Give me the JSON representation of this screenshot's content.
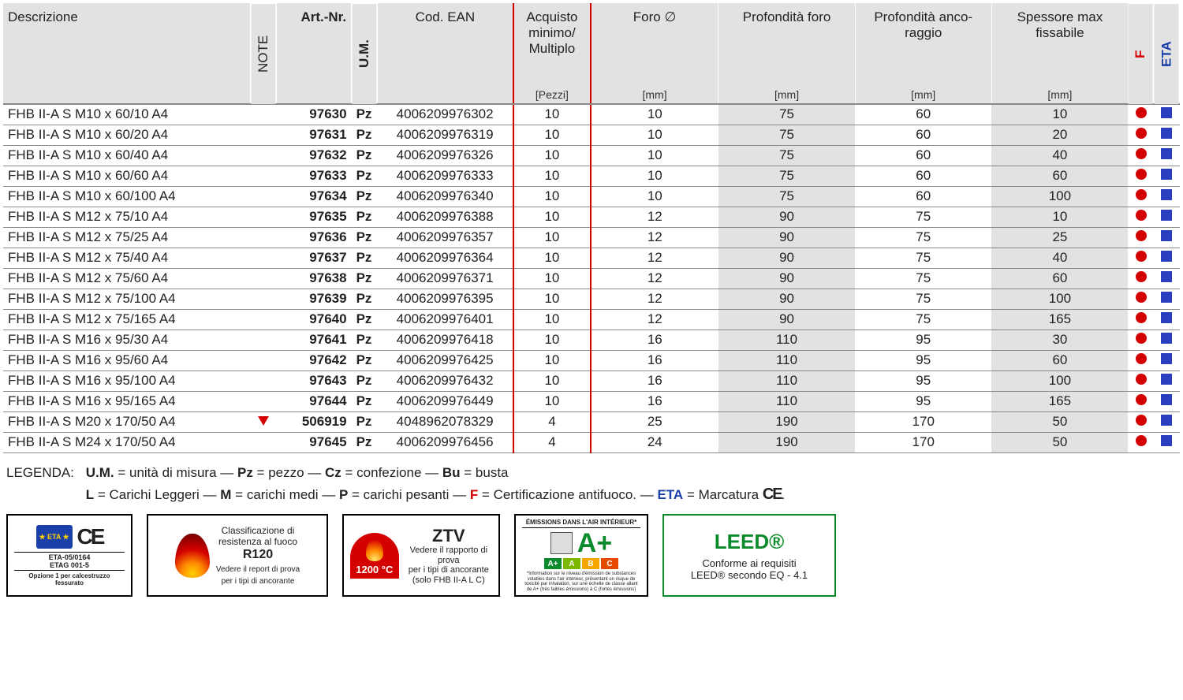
{
  "table": {
    "headers": {
      "desc": "Descrizione",
      "note": "NOTE",
      "art": "Art.-Nr.",
      "um": "U.M.",
      "ean": "Cod. EAN",
      "acq": "Acquisto minimo/ Multiplo",
      "acq_unit": "[Pezzi]",
      "foro": "Foro ∅",
      "foro_unit": "[mm]",
      "pforo": "Profondità foro",
      "pforo_unit": "[mm]",
      "panc": "Profondità anco- raggio",
      "panc_unit": "[mm]",
      "spess": "Spessore max fissabile",
      "spess_unit": "[mm]",
      "f": "F",
      "eta": "ETA"
    },
    "rows": [
      {
        "desc": "FHB II-A S M10 x 60/10 A4",
        "note": "",
        "art": "97630",
        "um": "Pz",
        "ean": "4006209976302",
        "acq": "10",
        "foro": "10",
        "pforo": "75",
        "panc": "60",
        "spess": "10"
      },
      {
        "desc": "FHB II-A S M10 x 60/20 A4",
        "note": "",
        "art": "97631",
        "um": "Pz",
        "ean": "4006209976319",
        "acq": "10",
        "foro": "10",
        "pforo": "75",
        "panc": "60",
        "spess": "20"
      },
      {
        "desc": "FHB II-A S M10 x 60/40 A4",
        "note": "",
        "art": "97632",
        "um": "Pz",
        "ean": "4006209976326",
        "acq": "10",
        "foro": "10",
        "pforo": "75",
        "panc": "60",
        "spess": "40"
      },
      {
        "desc": "FHB II-A S M10 x 60/60 A4",
        "note": "",
        "art": "97633",
        "um": "Pz",
        "ean": "4006209976333",
        "acq": "10",
        "foro": "10",
        "pforo": "75",
        "panc": "60",
        "spess": "60"
      },
      {
        "desc": "FHB II-A S M10 x 60/100 A4",
        "note": "",
        "art": "97634",
        "um": "Pz",
        "ean": "4006209976340",
        "acq": "10",
        "foro": "10",
        "pforo": "75",
        "panc": "60",
        "spess": "100"
      },
      {
        "desc": "FHB II-A S M12 x 75/10 A4",
        "note": "",
        "art": "97635",
        "um": "Pz",
        "ean": "4006209976388",
        "acq": "10",
        "foro": "12",
        "pforo": "90",
        "panc": "75",
        "spess": "10"
      },
      {
        "desc": "FHB II-A S M12 x 75/25 A4",
        "note": "",
        "art": "97636",
        "um": "Pz",
        "ean": "4006209976357",
        "acq": "10",
        "foro": "12",
        "pforo": "90",
        "panc": "75",
        "spess": "25"
      },
      {
        "desc": "FHB II-A S M12 x 75/40 A4",
        "note": "",
        "art": "97637",
        "um": "Pz",
        "ean": "4006209976364",
        "acq": "10",
        "foro": "12",
        "pforo": "90",
        "panc": "75",
        "spess": "40"
      },
      {
        "desc": "FHB II-A S M12 x 75/60 A4",
        "note": "",
        "art": "97638",
        "um": "Pz",
        "ean": "4006209976371",
        "acq": "10",
        "foro": "12",
        "pforo": "90",
        "panc": "75",
        "spess": "60"
      },
      {
        "desc": "FHB II-A S M12 x 75/100 A4",
        "note": "",
        "art": "97639",
        "um": "Pz",
        "ean": "4006209976395",
        "acq": "10",
        "foro": "12",
        "pforo": "90",
        "panc": "75",
        "spess": "100"
      },
      {
        "desc": "FHB II-A S M12 x 75/165 A4",
        "note": "",
        "art": "97640",
        "um": "Pz",
        "ean": "4006209976401",
        "acq": "10",
        "foro": "12",
        "pforo": "90",
        "panc": "75",
        "spess": "165"
      },
      {
        "desc": "FHB II-A S M16 x 95/30 A4",
        "note": "",
        "art": "97641",
        "um": "Pz",
        "ean": "4006209976418",
        "acq": "10",
        "foro": "16",
        "pforo": "110",
        "panc": "95",
        "spess": "30"
      },
      {
        "desc": "FHB II-A S M16 x 95/60 A4",
        "note": "",
        "art": "97642",
        "um": "Pz",
        "ean": "4006209976425",
        "acq": "10",
        "foro": "16",
        "pforo": "110",
        "panc": "95",
        "spess": "60"
      },
      {
        "desc": "FHB II-A S M16 x 95/100 A4",
        "note": "",
        "art": "97643",
        "um": "Pz",
        "ean": "4006209976432",
        "acq": "10",
        "foro": "16",
        "pforo": "110",
        "panc": "95",
        "spess": "100"
      },
      {
        "desc": "FHB II-A S M16 x 95/165 A4",
        "note": "",
        "art": "97644",
        "um": "Pz",
        "ean": "4006209976449",
        "acq": "10",
        "foro": "16",
        "pforo": "110",
        "panc": "95",
        "spess": "165"
      },
      {
        "desc": "FHB II-A S M20 x 170/50 A4",
        "note": "tri",
        "art": "506919",
        "um": "Pz",
        "ean": "4048962078329",
        "acq": "4",
        "foro": "25",
        "pforo": "190",
        "panc": "170",
        "spess": "50"
      },
      {
        "desc": "FHB II-A S M24 x 170/50 A4",
        "note": "",
        "art": "97645",
        "um": "Pz",
        "ean": "4006209976456",
        "acq": "4",
        "foro": "24",
        "pforo": "190",
        "panc": "170",
        "spess": "50"
      }
    ],
    "colors": {
      "header_bg": "#e2e2e2",
      "shade_bg": "#e2e2e2",
      "acq_border": "#d40000",
      "row_border": "#888888",
      "dot_red": "#d40000",
      "sq_blue": "#2a3fbf",
      "f_text": "#d40000",
      "eta_text": "#1a3fa8"
    }
  },
  "legend": {
    "label": "LEGENDA:",
    "line1_parts": {
      "um_b": "U.M.",
      "um_t": " = unità di misura — ",
      "pz_b": "Pz",
      "pz_t": " = pezzo — ",
      "cz_b": "Cz",
      "cz_t": " = confezione — ",
      "bu_b": "Bu",
      "bu_t": " = busta"
    },
    "line2_parts": {
      "l_b": "L",
      "l_t": " = Carichi Leggeri — ",
      "m_b": "M",
      "m_t": " = carichi medi — ",
      "p_b": "P",
      "p_t": " = carichi pesanti — ",
      "f_b": "F",
      "f_t": " = Certificazione antifuoco. — ",
      "eta_b": "ETA",
      "eta_t": " = Marcatura ",
      "ce": "CE",
      "dot": "."
    }
  },
  "badges": {
    "eta_ce": {
      "eta_text": "★ ETA ★",
      "ce": "CE",
      "line1": "ETA-05/0164",
      "line2": "ETAG 001-5",
      "opt": "Opzione 1 per calcestruzzo fessurato"
    },
    "r120": {
      "l1": "Classificazione di",
      "l2": "resistenza al fuoco",
      "r": "R120",
      "l3": "Vedere il report di prova",
      "l4": "per i tipi di ancorante"
    },
    "ztv": {
      "temp": "1200 °C",
      "title": "ZTV",
      "l1": "Vedere il rapporto di prova",
      "l2": "per i tipi di ancorante",
      "l3": "(solo FHB II-A L C)"
    },
    "aplus": {
      "head": "ÉMISSIONS DANS L'AIR INTÉRIEUR*",
      "big": "A+",
      "cells": [
        "A+",
        "A",
        "B",
        "C"
      ],
      "cell_colors": [
        "#0a8a2a",
        "#7db800",
        "#f5a600",
        "#e84900"
      ],
      "foot": "*Information sur le niveau d'émission de substances volatiles dans l'air intérieur, présentant un risque de toxicité par inhalation, sur une échelle de classe allant de A+ (très faibles émissions) à C (fortes émissions)"
    },
    "leed": {
      "title": "LEED®",
      "l1": "Conforme ai requisiti",
      "l2": "LEED® secondo EQ - 4.1"
    }
  }
}
